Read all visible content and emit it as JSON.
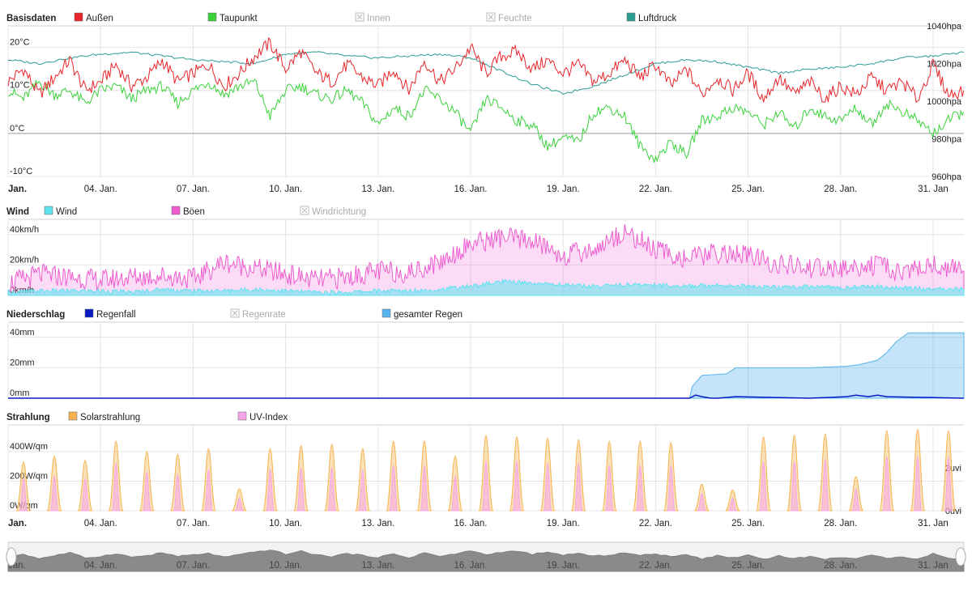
{
  "colors": {
    "outside": "#e8252a",
    "dewpoint": "#3bd23b",
    "inside": "#bbbbbb",
    "humidity": "#bbbbbb",
    "pressure": "#2b9c94",
    "wind": "#5ce3ef",
    "gusts": "#ef5bd0",
    "winddir": "#bbbbbb",
    "rainfall": "#0a1bc6",
    "rainrate": "#bbbbbb",
    "totalrain": "#57b3ee",
    "solar": "#f5b450",
    "uv": "#f7a5ea",
    "grid": "#e4e4e4",
    "text": "#222222"
  },
  "x_axis": {
    "tick_labels": [
      "Jan.",
      "04. Jan.",
      "07. Jan.",
      "10. Jan.",
      "13. Jan.",
      "16. Jan.",
      "19. Jan.",
      "22. Jan.",
      "25. Jan.",
      "28. Jan.",
      "31. Jan"
    ],
    "tick_days": [
      1,
      4,
      7,
      10,
      13,
      16,
      19,
      22,
      25,
      28,
      31
    ],
    "range_days": [
      1,
      32
    ]
  },
  "chart_data": [
    {
      "id": "basis",
      "type": "line",
      "title": "Basisdaten",
      "legend": [
        {
          "name": "Außen",
          "color_key": "outside",
          "enabled": true
        },
        {
          "name": "Taupunkt",
          "color_key": "dewpoint",
          "enabled": true
        },
        {
          "name": "Innen",
          "color_key": "inside",
          "enabled": false
        },
        {
          "name": "Feuchte",
          "color_key": "humidity",
          "enabled": false
        },
        {
          "name": "Luftdruck",
          "color_key": "pressure",
          "enabled": true
        }
      ],
      "y_left": {
        "ticks": [
          20,
          10,
          0,
          -10
        ],
        "labels": [
          "20°C",
          "10°C",
          "0°C",
          "-10°C"
        ],
        "range": [
          -10,
          25
        ]
      },
      "y_right": {
        "ticks": [
          1040,
          1020,
          1000,
          980,
          960
        ],
        "labels": [
          "1040hpa",
          "1020hpa",
          "1000hpa",
          "980hpa",
          "960hpa"
        ],
        "range": [
          960,
          1040
        ]
      },
      "series": [
        {
          "name": "Außen",
          "unit": "°C",
          "x": [
            1,
            1.5,
            2,
            2.5,
            3,
            3.5,
            4,
            4.5,
            5,
            5.5,
            6,
            6.5,
            7,
            7.5,
            8,
            8.5,
            9,
            9.5,
            10,
            10.5,
            11,
            11.5,
            12,
            12.5,
            13,
            13.5,
            14,
            14.5,
            15,
            15.5,
            16,
            16.5,
            17,
            17.5,
            18,
            18.5,
            19,
            19.5,
            20,
            20.5,
            21,
            21.5,
            22,
            22.5,
            23,
            23.5,
            24,
            24.5,
            25,
            25.5,
            26,
            26.5,
            27,
            27.5,
            28,
            28.5,
            29,
            29.5,
            30,
            30.5,
            31,
            31.5,
            32
          ],
          "values": [
            12,
            15,
            9,
            13,
            17,
            10,
            12,
            16,
            11,
            13,
            17,
            12,
            14,
            16,
            11,
            14,
            18,
            21,
            15,
            19,
            14,
            12,
            16,
            13,
            11,
            15,
            10,
            17,
            12,
            15,
            20,
            14,
            18,
            19,
            15,
            17,
            14,
            16,
            12,
            14,
            17,
            13,
            16,
            11,
            15,
            9,
            13,
            10,
            14,
            8,
            13,
            9,
            12,
            8,
            11,
            9,
            13,
            10,
            12,
            8,
            16,
            9,
            10
          ]
        },
        {
          "name": "Taupunkt",
          "unit": "°C",
          "x": [
            1,
            1.5,
            2,
            2.5,
            3,
            3.5,
            4,
            4.5,
            5,
            5.5,
            6,
            6.5,
            7,
            7.5,
            8,
            8.5,
            9,
            9.5,
            10,
            10.5,
            11,
            11.5,
            12,
            12.5,
            13,
            13.5,
            14,
            14.5,
            15,
            15.5,
            16,
            16.5,
            17,
            17.5,
            18,
            18.5,
            19,
            19.5,
            20,
            20.5,
            21,
            21.5,
            22,
            22.5,
            23,
            23.5,
            24,
            24.5,
            25,
            25.5,
            26,
            26.5,
            27,
            27.5,
            28,
            28.5,
            29,
            29.5,
            30,
            30.5,
            31,
            31.5,
            32
          ],
          "values": [
            10,
            8,
            12,
            9,
            10,
            7,
            10,
            11,
            8,
            10,
            11,
            7,
            10,
            12,
            9,
            11,
            12,
            4,
            10,
            11,
            9,
            8,
            10,
            7,
            2,
            6,
            4,
            10,
            8,
            5,
            0,
            8,
            6,
            3,
            2,
            -3,
            -1,
            -2,
            5,
            6,
            4,
            -3,
            -6,
            -2,
            -5,
            3,
            4,
            6,
            5,
            2,
            5,
            1,
            6,
            4,
            3,
            6,
            2,
            7,
            5,
            3,
            0,
            3,
            5
          ]
        },
        {
          "name": "Luftdruck",
          "unit": "hpa",
          "x": [
            1,
            2,
            3,
            4,
            5,
            6,
            7,
            8,
            9,
            10,
            11,
            12,
            13,
            14,
            15,
            16,
            17,
            18,
            19,
            20,
            21,
            22,
            23,
            24,
            25,
            26,
            27,
            28,
            29,
            30,
            31,
            32
          ],
          "values": [
            1022,
            1020,
            1023,
            1025,
            1026,
            1024,
            1022,
            1021,
            1020,
            1025,
            1026,
            1024,
            1023,
            1024,
            1025,
            1023,
            1016,
            1009,
            1004,
            1008,
            1014,
            1020,
            1022,
            1021,
            1018,
            1015,
            1017,
            1018,
            1020,
            1023,
            1024,
            1026
          ]
        }
      ]
    },
    {
      "id": "wind",
      "type": "area",
      "title": "Wind",
      "legend": [
        {
          "name": "Wind",
          "color_key": "wind",
          "enabled": true
        },
        {
          "name": "Böen",
          "color_key": "gusts",
          "enabled": true
        },
        {
          "name": "Windrichtung",
          "color_key": "winddir",
          "enabled": false
        }
      ],
      "y_left": {
        "ticks": [
          40,
          20,
          0
        ],
        "labels": [
          "40km/h",
          "20km/h",
          "0km/h"
        ],
        "range": [
          0,
          50
        ]
      },
      "series": [
        {
          "name": "Wind",
          "unit": "km/h",
          "x": [
            1,
            2,
            3,
            4,
            5,
            6,
            7,
            8,
            9,
            10,
            11,
            12,
            13,
            14,
            15,
            16,
            17,
            18,
            19,
            20,
            21,
            22,
            23,
            24,
            25,
            26,
            27,
            28,
            29,
            30,
            31,
            32
          ],
          "values": [
            2,
            3,
            3,
            3,
            2,
            4,
            3,
            3,
            4,
            3,
            2,
            2,
            3,
            3,
            4,
            6,
            9,
            8,
            7,
            6,
            7,
            7,
            6,
            7,
            6,
            5,
            6,
            5,
            6,
            5,
            4,
            4
          ]
        },
        {
          "name": "Böen",
          "unit": "km/h",
          "x": [
            1,
            2,
            3,
            4,
            5,
            6,
            7,
            8,
            9,
            10,
            11,
            12,
            13,
            14,
            15,
            16,
            17,
            18,
            19,
            20,
            21,
            22,
            23,
            24,
            25,
            26,
            27,
            28,
            29,
            30,
            31,
            32
          ],
          "values": [
            8,
            14,
            12,
            10,
            12,
            13,
            11,
            22,
            18,
            14,
            10,
            12,
            16,
            15,
            22,
            34,
            38,
            36,
            26,
            30,
            42,
            30,
            24,
            28,
            26,
            20,
            18,
            17,
            20,
            15,
            20,
            16
          ]
        }
      ]
    },
    {
      "id": "rain",
      "type": "area",
      "title": "Niederschlag",
      "legend": [
        {
          "name": "Regenfall",
          "color_key": "rainfall",
          "enabled": true
        },
        {
          "name": "Regenrate",
          "color_key": "rainrate",
          "enabled": false
        },
        {
          "name": "gesamter Regen",
          "color_key": "totalrain",
          "enabled": true
        }
      ],
      "y_left": {
        "ticks": [
          40,
          20,
          0
        ],
        "labels": [
          "40mm",
          "20mm",
          "0mm"
        ],
        "range": [
          0,
          50
        ]
      },
      "series": [
        {
          "name": "gesamter Regen",
          "unit": "mm",
          "x": [
            1,
            23.1,
            23.2,
            23.5,
            24.3,
            24.6,
            27,
            28.2,
            28.6,
            29.2,
            29.5,
            29.8,
            30.2,
            32
          ],
          "values": [
            0,
            0,
            8,
            15,
            16,
            20,
            20,
            21,
            22,
            25,
            30,
            37,
            43,
            43
          ]
        },
        {
          "name": "Regenfall",
          "unit": "mm",
          "x": [
            1,
            23.1,
            23.3,
            23.5,
            23.8,
            24,
            24.6,
            27,
            28.2,
            28.5,
            28.9,
            29.2,
            29.5,
            32
          ],
          "values": [
            0,
            0,
            2,
            1,
            0,
            0,
            1,
            0,
            1,
            2,
            1,
            2,
            1,
            0
          ]
        }
      ]
    },
    {
      "id": "solar",
      "type": "area",
      "title": "Strahlung",
      "legend": [
        {
          "name": "Solarstrahlung",
          "color_key": "solar",
          "enabled": true
        },
        {
          "name": "UV-Index",
          "color_key": "uv",
          "enabled": true
        }
      ],
      "y_left": {
        "ticks": [
          400,
          200,
          0
        ],
        "labels": [
          "400W/qm",
          "200W/qm",
          "0W/qm"
        ],
        "range": [
          0,
          580
        ]
      },
      "y_right": {
        "ticks": [
          2,
          0
        ],
        "labels": [
          "2uvi",
          "0uvi"
        ],
        "range": [
          0,
          4
        ]
      },
      "series": [
        {
          "name": "Solarstrahlung",
          "unit": "W/qm",
          "x": [
            1,
            2,
            3,
            4,
            5,
            6,
            7,
            8,
            9,
            10,
            11,
            12,
            13,
            14,
            15,
            16,
            17,
            18,
            19,
            20,
            21,
            22,
            23,
            24,
            25,
            26,
            27,
            28,
            29,
            30,
            31
          ],
          "values": [
            330,
            370,
            340,
            470,
            400,
            380,
            420,
            150,
            420,
            440,
            450,
            420,
            470,
            470,
            370,
            510,
            500,
            490,
            480,
            470,
            470,
            460,
            180,
            140,
            500,
            510,
            520,
            230,
            540,
            550,
            540
          ]
        },
        {
          "name": "UV-Index",
          "unit": "uvi",
          "x": [
            1,
            2,
            3,
            4,
            5,
            6,
            7,
            8,
            9,
            10,
            11,
            12,
            13,
            14,
            15,
            16,
            17,
            18,
            19,
            20,
            21,
            22,
            23,
            24,
            25,
            26,
            27,
            28,
            29,
            30,
            31
          ],
          "values": [
            1.5,
            1.6,
            1.5,
            2.2,
            1.8,
            1.7,
            1.9,
            0.6,
            1.9,
            2.0,
            2.0,
            1.9,
            2.1,
            2.1,
            1.6,
            2.3,
            2.3,
            2.2,
            2.2,
            2.1,
            2.1,
            2.1,
            0.8,
            0.6,
            2.3,
            2.3,
            2.4,
            1.0,
            2.5,
            2.5,
            2.5
          ]
        }
      ]
    }
  ]
}
